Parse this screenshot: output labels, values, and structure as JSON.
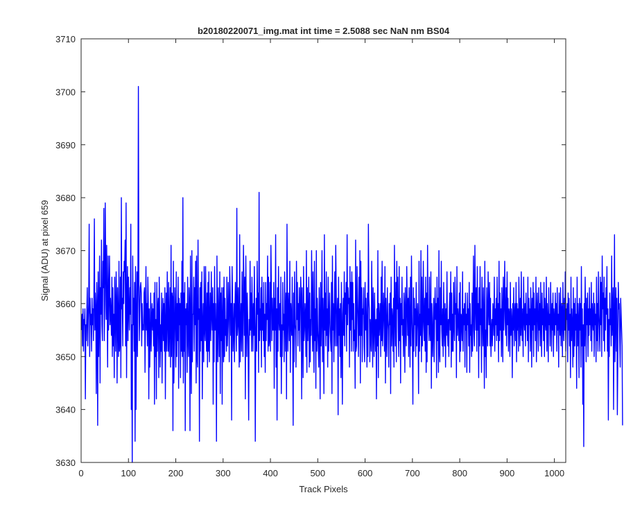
{
  "chart_data": {
    "type": "line",
    "title": "b20180220071_img.mat int time = 2.5088 sec  NaN nm BS04",
    "xlabel": "Track Pixels",
    "ylabel": "Signal (ADU) at pixel 659",
    "xlim": [
      0,
      1024
    ],
    "ylim": [
      3630,
      3710
    ],
    "xticks": [
      0,
      100,
      200,
      300,
      400,
      500,
      600,
      700,
      800,
      900,
      1000
    ],
    "yticks": [
      3630,
      3640,
      3650,
      3660,
      3670,
      3680,
      3690,
      3700,
      3710
    ],
    "grid": false,
    "legend": "none",
    "line_color": "#0000ff",
    "series": [
      {
        "x_start": 1,
        "x_step": 1,
        "y": [
          3655,
          3658,
          3652,
          3659,
          3651,
          3657,
          3656,
          3659,
          3642,
          3656,
          3653,
          3658,
          3663,
          3652,
          3657,
          3660,
          3675,
          3650,
          3661,
          3656,
          3658,
          3651,
          3661,
          3656,
          3659,
          3653,
          3661,
          3676,
          3655,
          3662,
          3659,
          3643,
          3664,
          3659,
          3637,
          3666,
          3650,
          3658,
          3669,
          3645,
          3663,
          3658,
          3672,
          3656,
          3653,
          3668,
          3663,
          3678,
          3653,
          3660,
          3679,
          3666,
          3657,
          3671,
          3660,
          3648,
          3669,
          3655,
          3662,
          3669,
          3656,
          3661,
          3658,
          3654,
          3665,
          3650,
          3663,
          3652,
          3658,
          3646,
          3665,
          3658,
          3651,
          3666,
          3660,
          3645,
          3663,
          3657,
          3650,
          3668,
          3651,
          3653,
          3665,
          3646,
          3680,
          3659,
          3661,
          3652,
          3666,
          3660,
          3668,
          3666,
          3672,
          3652,
          3679,
          3646,
          3660,
          3667,
          3653,
          3665,
          3659,
          3655,
          3663,
          3658,
          3675,
          3640,
          3656,
          3630,
          3669,
          3656,
          3661,
          3651,
          3664,
          3634,
          3667,
          3640,
          3657,
          3666,
          3650,
          3664,
          3701,
          3665,
          3653,
          3659,
          3663,
          3664,
          3662,
          3652,
          3660,
          3655,
          3656,
          3655,
          3662,
          3663,
          3647,
          3658,
          3667,
          3655,
          3660,
          3652,
          3665,
          3660,
          3642,
          3659,
          3648,
          3654,
          3662,
          3651,
          3657,
          3660,
          3655,
          3659,
          3652,
          3662,
          3641,
          3664,
          3650,
          3657,
          3642,
          3664,
          3651,
          3659,
          3661,
          3646,
          3665,
          3658,
          3648,
          3656,
          3651,
          3662,
          3645,
          3657,
          3661,
          3653,
          3660,
          3651,
          3663,
          3642,
          3656,
          3662,
          3651,
          3666,
          3657,
          3651,
          3664,
          3650,
          3656,
          3663,
          3648,
          3671,
          3650,
          3662,
          3661,
          3636,
          3668,
          3645,
          3654,
          3663,
          3657,
          3648,
          3666,
          3650,
          3660,
          3653,
          3665,
          3644,
          3661,
          3656,
          3660,
          3646,
          3662,
          3651,
          3668,
          3650,
          3680,
          3645,
          3662,
          3651,
          3664,
          3636,
          3659,
          3656,
          3660,
          3647,
          3665,
          3654,
          3650,
          3663,
          3660,
          3636,
          3669,
          3653,
          3643,
          3670,
          3649,
          3658,
          3658,
          3665,
          3651,
          3663,
          3656,
          3668,
          3645,
          3669,
          3650,
          3648,
          3672,
          3657,
          3659,
          3634,
          3663,
          3651,
          3664,
          3653,
          3666,
          3642,
          3656,
          3660,
          3649,
          3667,
          3655,
          3653,
          3667,
          3656,
          3651,
          3662,
          3648,
          3664,
          3651,
          3666,
          3649,
          3657,
          3662,
          3653,
          3666,
          3658,
          3655,
          3663,
          3641,
          3660,
          3649,
          3667,
          3655,
          3660,
          3655,
          3634,
          3669,
          3655,
          3649,
          3663,
          3658,
          3650,
          3666,
          3643,
          3662,
          3653,
          3663,
          3641,
          3657,
          3663,
          3649,
          3665,
          3650,
          3661,
          3654,
          3657,
          3651,
          3665,
          3652,
          3656,
          3664,
          3659,
          3649,
          3667,
          3662,
          3654,
          3660,
          3638,
          3667,
          3661,
          3651,
          3655,
          3660,
          3649,
          3659,
          3664,
          3657,
          3651,
          3678,
          3654,
          3656,
          3663,
          3655,
          3648,
          3673,
          3649,
          3655,
          3660,
          3651,
          3666,
          3657,
          3650,
          3671,
          3663,
          3654,
          3665,
          3642,
          3669,
          3659,
          3650,
          3662,
          3657,
          3651,
          3638,
          3657,
          3654,
          3668,
          3655,
          3662,
          3651,
          3665,
          3658,
          3651,
          3660,
          3654,
          3667,
          3656,
          3634,
          3655,
          3661,
          3651,
          3668,
          3658,
          3662,
          3647,
          3681,
          3653,
          3659,
          3655,
          3663,
          3648,
          3665,
          3655,
          3660,
          3653,
          3664,
          3650,
          3658,
          3647,
          3664,
          3653,
          3660,
          3657,
          3669,
          3651,
          3665,
          3652,
          3653,
          3664,
          3651,
          3671,
          3663,
          3653,
          3661,
          3655,
          3655,
          3664,
          3644,
          3661,
          3655,
          3673,
          3648,
          3659,
          3638,
          3663,
          3651,
          3667,
          3657,
          3655,
          3660,
          3650,
          3665,
          3643,
          3656,
          3650,
          3664,
          3655,
          3658,
          3649,
          3666,
          3658,
          3651,
          3662,
          3642,
          3675,
          3658,
          3651,
          3662,
          3659,
          3653,
          3668,
          3647,
          3660,
          3657,
          3654,
          3665,
          3652,
          3637,
          3662,
          3649,
          3666,
          3656,
          3655,
          3648,
          3668,
          3657,
          3664,
          3652,
          3660,
          3655,
          3663,
          3651,
          3659,
          3665,
          3661,
          3642,
          3663,
          3656,
          3646,
          3667,
          3653,
          3655,
          3660,
          3657,
          3650,
          3670,
          3647,
          3663,
          3653,
          3658,
          3665,
          3648,
          3662,
          3649,
          3657,
          3654,
          3670,
          3660,
          3651,
          3666,
          3655,
          3647,
          3668,
          3653,
          3659,
          3644,
          3670,
          3651,
          3661,
          3655,
          3652,
          3648,
          3663,
          3657,
          3642,
          3664,
          3652,
          3658,
          3670,
          3649,
          3661,
          3656,
          3643,
          3673,
          3655,
          3662,
          3652,
          3666,
          3654,
          3659,
          3648,
          3665,
          3651,
          3657,
          3662,
          3656,
          3653,
          3651,
          3664,
          3643,
          3669,
          3655,
          3660,
          3649,
          3658,
          3666,
          3652,
          3671,
          3663,
          3652,
          3657,
          3661,
          3639,
          3665,
          3654,
          3659,
          3650,
          3660,
          3646,
          3664,
          3655,
          3641,
          3658,
          3661,
          3654,
          3666,
          3652,
          3662,
          3658,
          3664,
          3651,
          3673,
          3656,
          3663,
          3660,
          3661,
          3648,
          3667,
          3655,
          3664,
          3651,
          3666,
          3657,
          3664,
          3651,
          3660,
          3653,
          3655,
          3644,
          3672,
          3651,
          3652,
          3667,
          3661,
          3656,
          3650,
          3665,
          3654,
          3670,
          3645,
          3668,
          3654,
          3663,
          3649,
          3659,
          3658,
          3663,
          3652,
          3649,
          3664,
          3655,
          3661,
          3656,
          3648,
          3662,
          3650,
          3675,
          3661,
          3659,
          3649,
          3657,
          3654,
          3651,
          3668,
          3657,
          3648,
          3663,
          3655,
          3650,
          3662,
          3656,
          3651,
          3657,
          3642,
          3659,
          3652,
          3670,
          3646,
          3660,
          3654,
          3657,
          3660,
          3650,
          3665,
          3653,
          3668,
          3652,
          3656,
          3662,
          3658,
          3651,
          3667,
          3645,
          3661,
          3655,
          3650,
          3663,
          3657,
          3655,
          3648,
          3660,
          3656,
          3662,
          3643,
          3665,
          3652,
          3659,
          3657,
          3651,
          3661,
          3648,
          3671,
          3658,
          3652,
          3664,
          3649,
          3668,
          3659,
          3665,
          3655,
          3650,
          3667,
          3653,
          3661,
          3645,
          3660,
          3656,
          3665,
          3654,
          3657,
          3650,
          3662,
          3659,
          3647,
          3663,
          3656,
          3652,
          3667,
          3660,
          3654,
          3661,
          3650,
          3663,
          3657,
          3648,
          3665,
          3652,
          3669,
          3658,
          3653,
          3641,
          3663,
          3651,
          3661,
          3656,
          3659,
          3650,
          3664,
          3652,
          3657,
          3660,
          3655,
          3643,
          3668,
          3651,
          3658,
          3654,
          3670,
          3649,
          3665,
          3652,
          3656,
          3668,
          3657,
          3653,
          3661,
          3651,
          3665,
          3647,
          3662,
          3649,
          3671,
          3656,
          3659,
          3653,
          3665,
          3655,
          3653,
          3666,
          3644,
          3660,
          3655,
          3650,
          3657,
          3661,
          3649,
          3658,
          3663,
          3657,
          3660,
          3646,
          3665,
          3653,
          3661,
          3647,
          3670,
          3651,
          3649,
          3663,
          3656,
          3668,
          3655,
          3652,
          3659,
          3650,
          3664,
          3655,
          3652,
          3660,
          3648,
          3659,
          3654,
          3666,
          3655,
          3652,
          3657,
          3650,
          3659,
          3662,
          3655,
          3666,
          3648,
          3662,
          3651,
          3658,
          3651,
          3664,
          3656,
          3653,
          3665,
          3658,
          3660,
          3646,
          3667,
          3654,
          3659,
          3657,
          3653,
          3662,
          3649,
          3664,
          3651,
          3658,
          3657,
          3653,
          3666,
          3651,
          3659,
          3656,
          3660,
          3648,
          3662,
          3655,
          3658,
          3647,
          3662,
          3656,
          3659,
          3652,
          3664,
          3647,
          3660,
          3654,
          3656,
          3650,
          3662,
          3651,
          3658,
          3669,
          3655,
          3652,
          3671,
          3660,
          3655,
          3663,
          3651,
          3667,
          3655,
          3660,
          3646,
          3663,
          3652,
          3667,
          3656,
          3659,
          3647,
          3665,
          3658,
          3652,
          3663,
          3656,
          3644,
          3668,
          3650,
          3655,
          3646,
          3663,
          3658,
          3652,
          3666,
          3659,
          3656,
          3664,
          3652,
          3661,
          3650,
          3655,
          3657,
          3652,
          3660,
          3658,
          3654,
          3665,
          3651,
          3659,
          3656,
          3661,
          3653,
          3665,
          3654,
          3660,
          3649,
          3668,
          3653,
          3662,
          3655,
          3659,
          3650,
          3663,
          3657,
          3649,
          3665,
          3655,
          3660,
          3668,
          3657,
          3654,
          3663,
          3652,
          3666,
          3656,
          3661,
          3651,
          3659,
          3658,
          3650,
          3664,
          3654,
          3659,
          3657,
          3646,
          3660,
          3655,
          3663,
          3652,
          3658,
          3660,
          3653,
          3664,
          3649,
          3660,
          3655,
          3659,
          3651,
          3665,
          3658,
          3652,
          3661,
          3654,
          3666,
          3656,
          3653,
          3659,
          3650,
          3665,
          3657,
          3655,
          3660,
          3652,
          3662,
          3656,
          3658,
          3653,
          3665,
          3649,
          3661,
          3656,
          3659,
          3651,
          3663,
          3658,
          3648,
          3661,
          3655,
          3664,
          3650,
          3662,
          3656,
          3659,
          3653,
          3665,
          3649,
          3658,
          3662,
          3656,
          3651,
          3663,
          3655,
          3660,
          3652,
          3664,
          3657,
          3650,
          3662,
          3656,
          3659,
          3653,
          3664,
          3650,
          3661,
          3657,
          3655,
          3665,
          3651,
          3660,
          3657,
          3649,
          3663,
          3656,
          3658,
          3652,
          3664,
          3658,
          3651,
          3660,
          3655,
          3662,
          3650,
          3659,
          3657,
          3654,
          3662,
          3656,
          3660,
          3651,
          3663,
          3655,
          3658,
          3648,
          3662,
          3657,
          3654,
          3663,
          3652,
          3660,
          3659,
          3650,
          3664,
          3656,
          3653,
          3661,
          3655,
          3666,
          3651,
          3659,
          3657,
          3660,
          3649,
          3662,
          3655,
          3661,
          3652,
          3658,
          3646,
          3665,
          3653,
          3659,
          3656,
          3648,
          3663,
          3650,
          3660,
          3652,
          3661,
          3655,
          3658,
          3644,
          3665,
          3652,
          3660,
          3657,
          3646,
          3661,
          3655,
          3660,
          3648,
          3667,
          3652,
          3659,
          3641,
          3656,
          3633,
          3660,
          3652,
          3665,
          3657,
          3649,
          3661,
          3656,
          3662,
          3650,
          3659,
          3654,
          3663,
          3656,
          3659,
          3653,
          3664,
          3651,
          3660,
          3657,
          3655,
          3662,
          3650,
          3660,
          3656,
          3658,
          3649,
          3665,
          3653,
          3660,
          3651,
          3666,
          3658,
          3655,
          3651,
          3665,
          3656,
          3664,
          3650,
          3669,
          3659,
          3662,
          3653,
          3665,
          3651,
          3661,
          3655,
          3663,
          3658,
          3667,
          3651,
          3659,
          3638,
          3657,
          3650,
          3662,
          3656,
          3659,
          3652,
          3669,
          3654,
          3658,
          3663,
          3640,
          3656,
          3673,
          3649,
          3657,
          3663,
          3651,
          3661,
          3639,
          3650,
          3664,
          3659,
          3660,
          3653,
          3648,
          3661,
          3658,
          3655,
          3652,
          3637
        ]
      }
    ]
  }
}
